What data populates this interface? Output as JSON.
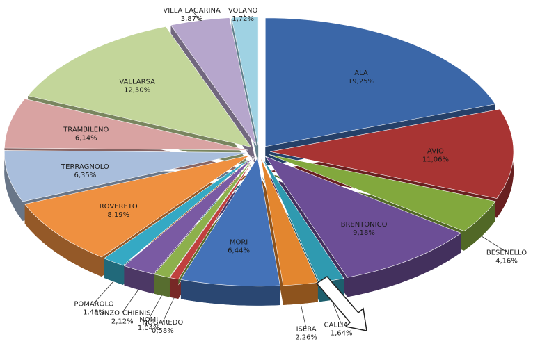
{
  "chart_data": {
    "type": "pie",
    "style": "3d-exploded",
    "title": "",
    "legend": "none",
    "slices": [
      {
        "label": "ALA",
        "value": 19.25,
        "value_text": "19,25%",
        "color": "#3b67a8"
      },
      {
        "label": "AVIO",
        "value": 11.06,
        "value_text": "11,06%",
        "color": "#a83433"
      },
      {
        "label": "BESENELLO",
        "value": 4.16,
        "value_text": "4,16%",
        "color": "#82a83d"
      },
      {
        "label": "BRENTONICO",
        "value": 9.18,
        "value_text": "9,18%",
        "color": "#6c4e96"
      },
      {
        "label": "CALLIANO",
        "value": 1.64,
        "value_text": "1,64%",
        "color": "#2f9ab0"
      },
      {
        "label": "ISERA",
        "value": 2.26,
        "value_text": "2,26%",
        "color": "#e3862f"
      },
      {
        "label": "MORI",
        "value": 6.44,
        "value_text": "6,44%",
        "color": "#4472b8"
      },
      {
        "label": "NOGAREDO",
        "value": 0.58,
        "value_text": "0,58%",
        "color": "#c0403e"
      },
      {
        "label": "NOMI",
        "value": 1.04,
        "value_text": "1,04%",
        "color": "#8db04c"
      },
      {
        "label": "RONZO-CHIENIS",
        "value": 2.12,
        "value_text": "2,12%",
        "color": "#7a5aa3"
      },
      {
        "label": "POMAROLO",
        "value": 1.48,
        "value_text": "1,48%",
        "color": "#35a9c4"
      },
      {
        "label": "ROVERETO",
        "value": 8.19,
        "value_text": "8,19%",
        "color": "#ef9040"
      },
      {
        "label": "TERRAGNOLO",
        "value": 6.35,
        "value_text": "6,35%",
        "color": "#a9bedc"
      },
      {
        "label": "TRAMBILENO",
        "value": 6.14,
        "value_text": "6,14%",
        "color": "#d9a3a2"
      },
      {
        "label": "VALLARSA",
        "value": 12.5,
        "value_text": "12,50%",
        "color": "#c3d69a"
      },
      {
        "label": "VILLA LAGARINA",
        "value": 3.87,
        "value_text": "3,87%",
        "color": "#b6a6cc"
      },
      {
        "label": "VOLANO",
        "value": 1.72,
        "value_text": "1,72%",
        "color": "#9fd2e3"
      }
    ]
  }
}
